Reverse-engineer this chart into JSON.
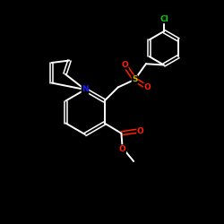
{
  "background_color": "#000000",
  "bond_color": "#ffffff",
  "N_color": "#1a1aff",
  "O_color": "#ff2200",
  "S_color": "#ccaa00",
  "Cl_color": "#00cc00",
  "figsize": [
    2.5,
    2.5
  ],
  "dpi": 100,
  "xlim": [
    0,
    10
  ],
  "ylim": [
    0,
    10
  ]
}
